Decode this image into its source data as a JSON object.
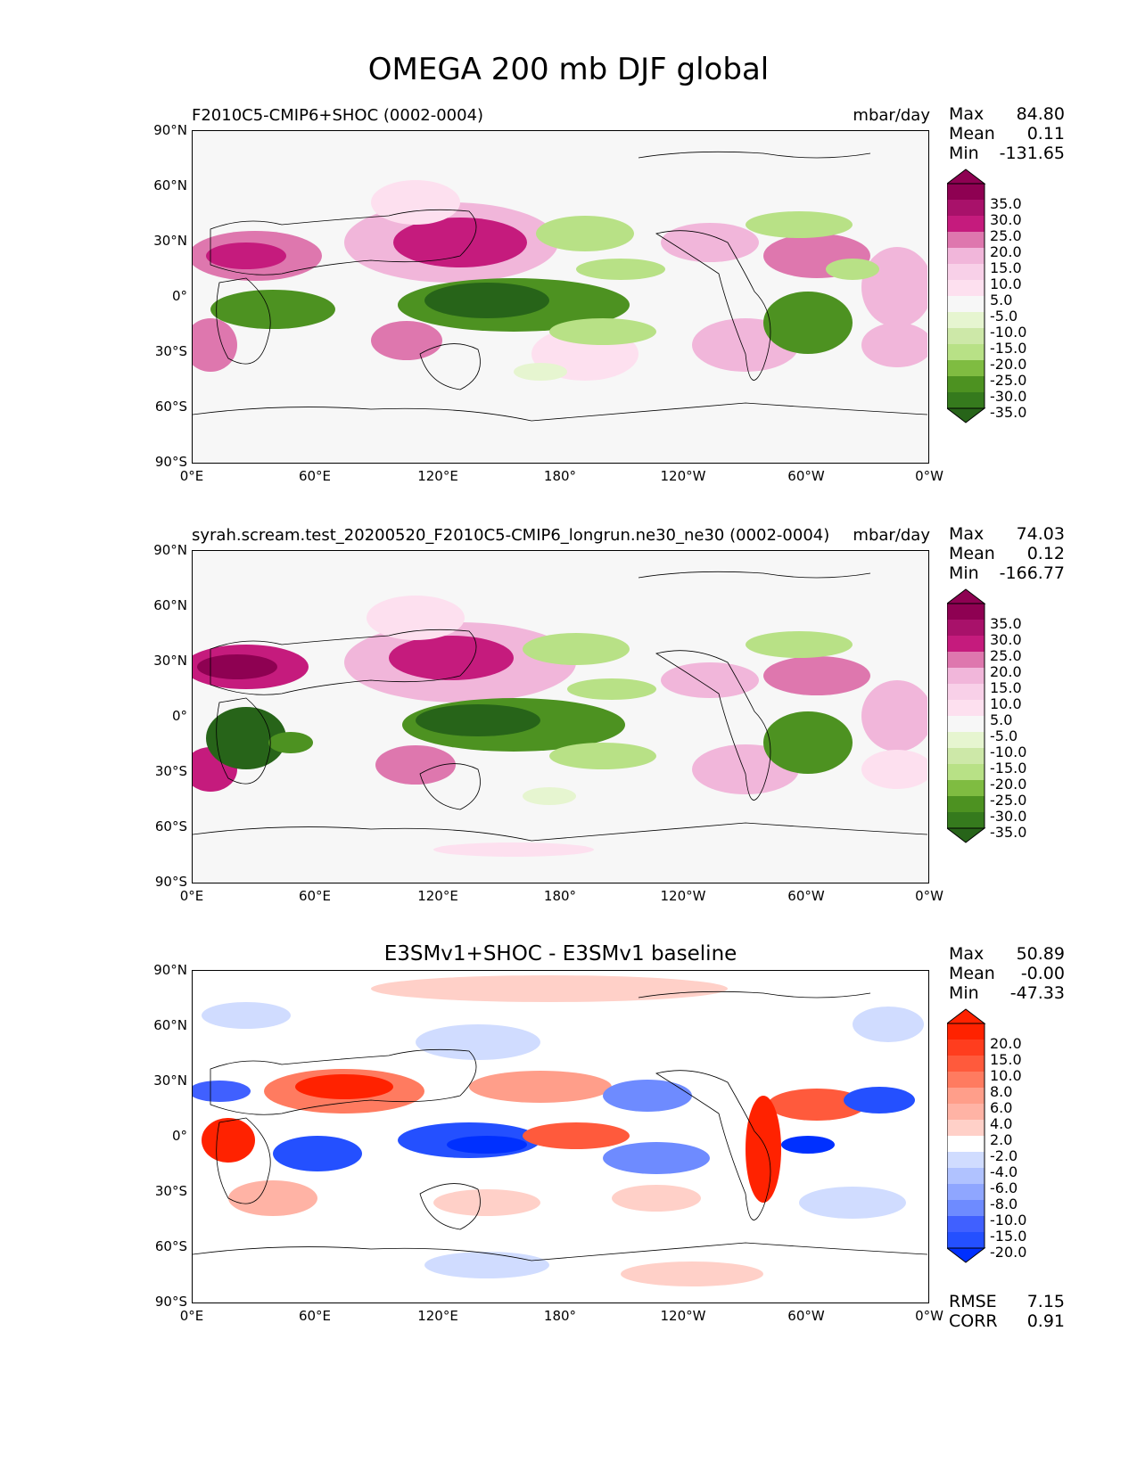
{
  "title": "OMEGA 200 mb DJF global",
  "lat_ticks": [
    "90°N",
    "60°N",
    "30°N",
    "0°",
    "30°S",
    "60°S",
    "90°S"
  ],
  "lon_ticks": [
    "0°E",
    "60°E",
    "120°E",
    "180°",
    "120°W",
    "60°W",
    "0°W"
  ],
  "colors": {
    "pink_max": "#8e0152",
    "pink_mid": "#de77ae",
    "pink_light": "#fde0ef",
    "neutral": "#f7f7f7",
    "green_light": "#e6f5d0",
    "green_mid": "#7fbc41",
    "green_max": "#276419",
    "red_max": "#ff2200",
    "red_light": "#ffd0c8",
    "blue_light": "#d0dcff",
    "blue_max": "#0030ff"
  },
  "panels": [
    {
      "title_left": "F2010C5-CMIP6+SHOC (0002-0004)",
      "title_right": "mbar/day",
      "stats": {
        "max_label": "Max",
        "max": "84.80",
        "mean_label": "Mean",
        "mean": "0.11",
        "min_label": "Min",
        "min": "-131.65"
      },
      "colorbar_labels": [
        "35.0",
        "30.0",
        "25.0",
        "20.0",
        "15.0",
        "10.0",
        "5.0",
        "-5.0",
        "-10.0",
        "-15.0",
        "-20.0",
        "-25.0",
        "-30.0",
        "-35.0"
      ]
    },
    {
      "title_left": "syrah.scream.test_20200520_F2010C5-CMIP6_longrun.ne30_ne30 (0002-0004)",
      "title_right": "mbar/day",
      "stats": {
        "max_label": "Max",
        "max": "74.03",
        "mean_label": "Mean",
        "mean": "0.12",
        "min_label": "Min",
        "min": "-166.77"
      },
      "colorbar_labels": [
        "35.0",
        "30.0",
        "25.0",
        "20.0",
        "15.0",
        "10.0",
        "5.0",
        "-5.0",
        "-10.0",
        "-15.0",
        "-20.0",
        "-25.0",
        "-30.0",
        "-35.0"
      ]
    },
    {
      "title_center": "E3SMv1+SHOC - E3SMv1 baseline",
      "stats": {
        "max_label": "Max",
        "max": "50.89",
        "mean_label": "Mean",
        "mean": "-0.00",
        "min_label": "Min",
        "min": "-47.33"
      },
      "colorbar_labels": [
        "20.0",
        "15.0",
        "10.0",
        "8.0",
        "6.0",
        "4.0",
        "2.0",
        "-2.0",
        "-4.0",
        "-6.0",
        "-8.0",
        "-10.0",
        "-15.0",
        "-20.0"
      ],
      "rmse_label": "RMSE",
      "rmse": "7.15",
      "corr_label": "CORR",
      "corr": "0.91"
    }
  ]
}
